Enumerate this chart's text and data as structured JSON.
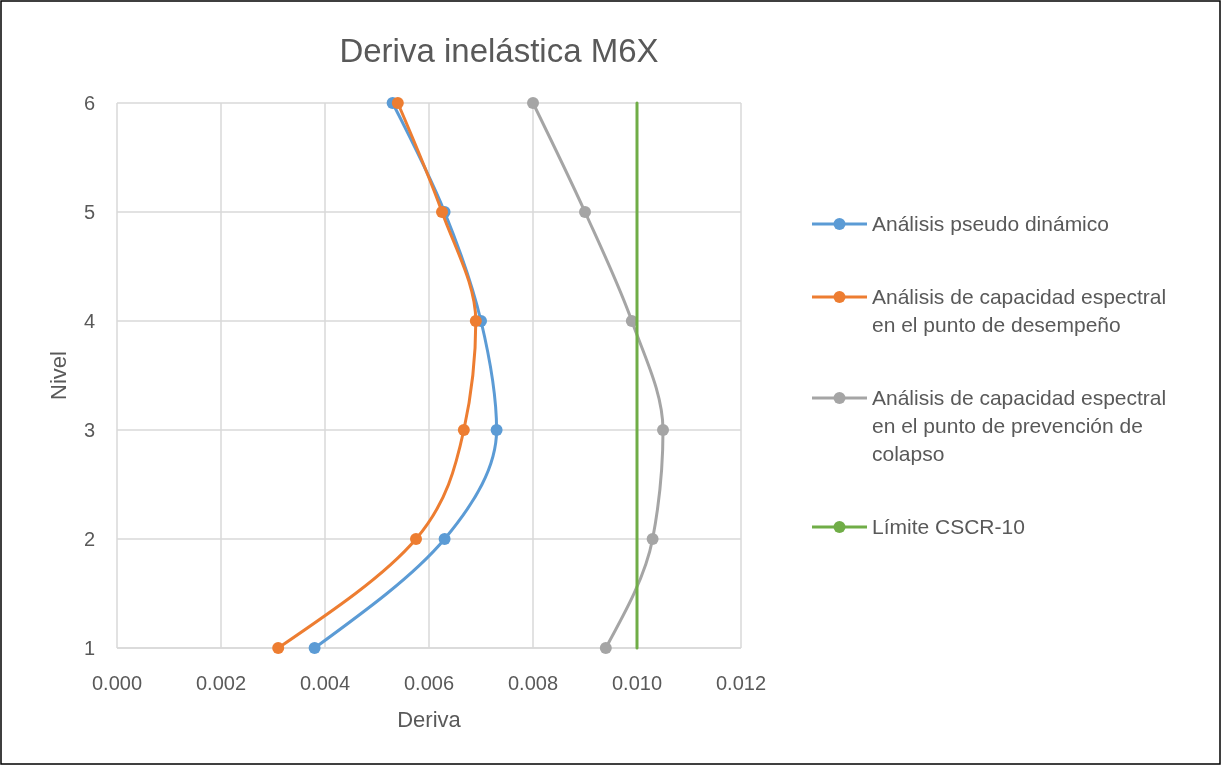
{
  "chart_data": {
    "type": "line",
    "title": "Deriva inelástica M6X",
    "xlabel": "Deriva",
    "ylabel": "Nivel",
    "xlim": [
      0,
      0.012
    ],
    "xticks": [
      {
        "value": 0,
        "label": "0.000"
      },
      {
        "value": 0.002,
        "label": "0.002"
      },
      {
        "value": 0.004,
        "label": "0.004"
      },
      {
        "value": 0.006,
        "label": "0.006"
      },
      {
        "value": 0.008,
        "label": "0.008"
      },
      {
        "value": 0.01,
        "label": "0.010"
      },
      {
        "value": 0.012,
        "label": "0.012"
      }
    ],
    "ylim": [
      1,
      6
    ],
    "yticks": [
      1,
      2,
      3,
      4,
      5,
      6
    ],
    "grid": true,
    "legend": "right",
    "marker": "circle",
    "series": [
      {
        "name": "Análisis pseudo dinámico",
        "color": "#5b9bd5",
        "x": [
          0.0038,
          0.0063,
          0.0073,
          0.007,
          0.0063,
          0.0053
        ],
        "values": [
          1,
          2,
          3,
          4,
          5,
          6
        ]
      },
      {
        "name": "Análisis de capacidad espectral en el punto de desempeño",
        "color": "#ed7d31",
        "x": [
          0.0031,
          0.00575,
          0.00667,
          0.0069,
          0.00625,
          0.0054
        ],
        "values": [
          1,
          2,
          3,
          4,
          5,
          6
        ]
      },
      {
        "name": "Análisis de capacidad espectral en el punto de prevención de colapso",
        "color": "#a5a5a5",
        "x": [
          0.0094,
          0.0103,
          0.0105,
          0.0099,
          0.009,
          0.008
        ],
        "values": [
          1,
          2,
          3,
          4,
          5,
          6
        ]
      },
      {
        "name": "Límite CSCR-10",
        "color": "#70ad47",
        "x": [
          0.01,
          0.01
        ],
        "values": [
          1,
          6
        ],
        "marker": "none"
      }
    ]
  }
}
